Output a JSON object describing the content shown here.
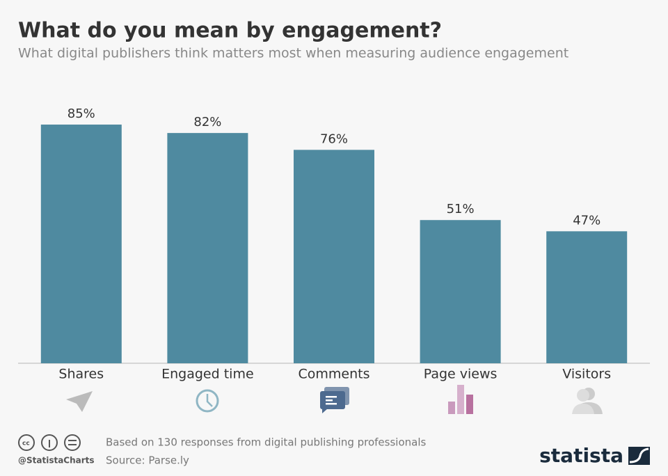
{
  "chart_data": {
    "type": "bar",
    "title": "What do you mean by engagement?",
    "subtitle": "What digital publishers think matters most when measuring audience engagement",
    "categories": [
      "Shares",
      "Engaged time",
      "Comments",
      "Page views",
      "Visitors"
    ],
    "values": [
      85,
      82,
      76,
      51,
      47
    ],
    "value_labels": [
      "85%",
      "82%",
      "76%",
      "51%",
      "47%"
    ],
    "color": "#4f8aa0",
    "ylim": [
      0,
      100
    ],
    "note": "Based on 130 responses from digital publishing professionals",
    "source": "Source: Parse.ly",
    "handle": "@StatistaCharts",
    "brand": "statista"
  }
}
